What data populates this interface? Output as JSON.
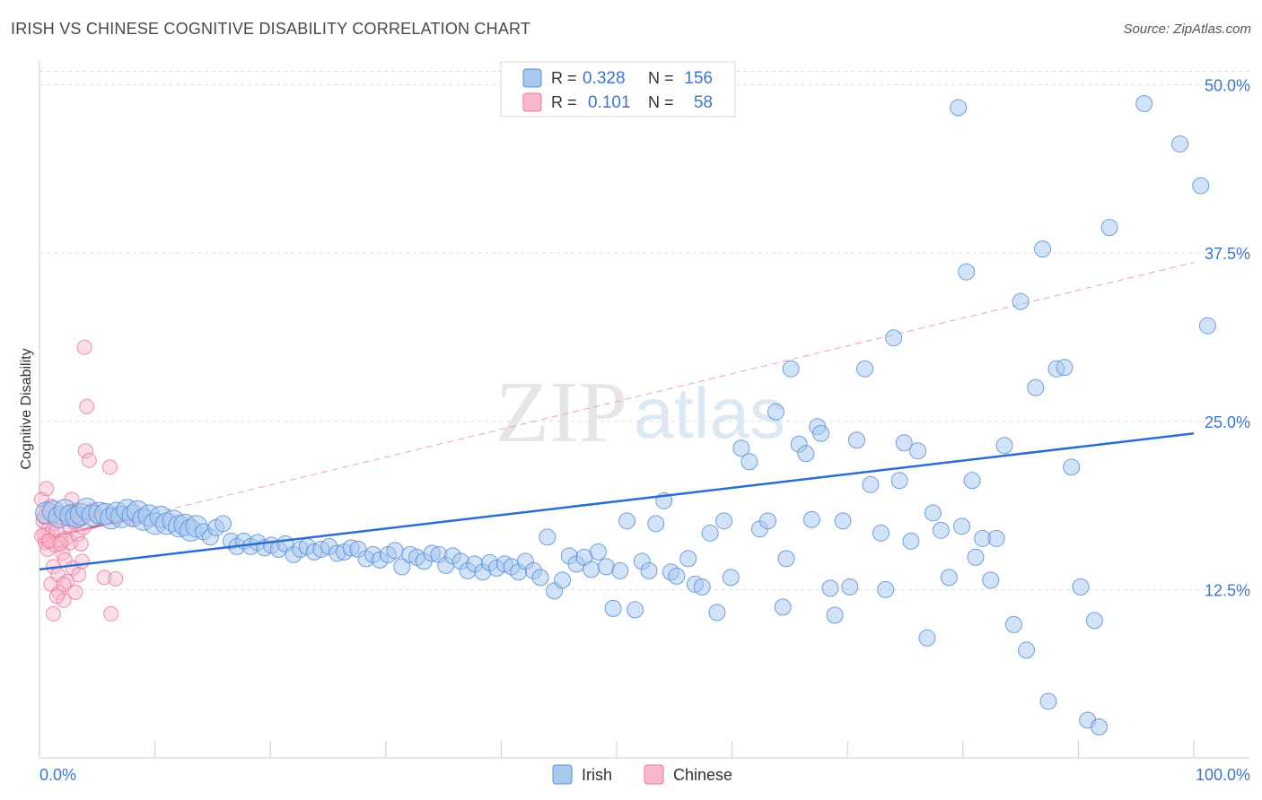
{
  "title": "IRISH VS CHINESE COGNITIVE DISABILITY CORRELATION CHART",
  "source": "Source: ZipAtlas.com",
  "watermark": {
    "zip": "ZIP",
    "atlas": "atlas"
  },
  "legend_top": [
    {
      "r_label": "R =",
      "r_value": "0.328",
      "n_label": "N =",
      "n_value": "156"
    },
    {
      "r_label": "R =",
      "r_value": "0.101",
      "n_label": "N =",
      "n_value": "58"
    }
  ],
  "colors": {
    "irish_fill": "#a8c8f0",
    "irish_stroke": "#5a8fd8",
    "irish_line": "#2a6fd0",
    "chinese_fill": "#f7b8cc",
    "chinese_stroke": "#e87898",
    "chinese_line": "#e8507a",
    "axis_text": "#3a76d0",
    "grid": "#dddddd"
  },
  "chart_data": {
    "type": "scatter",
    "title": "IRISH VS CHINESE COGNITIVE DISABILITY CORRELATION CHART",
    "xlabel": "",
    "ylabel": "Cognitive Disability",
    "xlim": [
      0,
      100
    ],
    "ylim": [
      0,
      51.5
    ],
    "x_tick_labels": [
      "0.0%",
      "100.0%"
    ],
    "y_ticks": [
      12.5,
      25.0,
      37.5,
      50.0
    ],
    "y_tick_labels": [
      "12.5%",
      "25.0%",
      "37.5%",
      "50.0%"
    ],
    "legend": [
      "Irish",
      "Chinese"
    ],
    "series": [
      {
        "name": "Irish",
        "r": 0.328,
        "n": 156,
        "trend": {
          "x0": 0,
          "y0": 14.0,
          "x1": 100,
          "y1": 24.1
        },
        "points": [
          [
            0.6,
            18.2
          ],
          [
            1.2,
            18.3
          ],
          [
            1.7,
            17.9
          ],
          [
            2.2,
            18.4
          ],
          [
            2.7,
            18.0
          ],
          [
            3.2,
            17.9
          ],
          [
            3.6,
            18.1
          ],
          [
            4.1,
            18.5
          ],
          [
            4.6,
            18.0
          ],
          [
            5.2,
            18.2
          ],
          [
            5.7,
            18.1
          ],
          [
            6.2,
            17.8
          ],
          [
            6.7,
            18.2
          ],
          [
            7.1,
            17.9
          ],
          [
            7.6,
            18.4
          ],
          [
            8.1,
            18.0
          ],
          [
            8.5,
            18.3
          ],
          [
            9.0,
            17.7
          ],
          [
            9.5,
            18.0
          ],
          [
            10.0,
            17.4
          ],
          [
            10.5,
            17.9
          ],
          [
            11.0,
            17.4
          ],
          [
            11.6,
            17.6
          ],
          [
            12.1,
            17.2
          ],
          [
            12.6,
            17.3
          ],
          [
            13.1,
            16.9
          ],
          [
            13.6,
            17.2
          ],
          [
            14.2,
            16.8
          ],
          [
            14.8,
            16.4
          ],
          [
            15.3,
            17.1
          ],
          [
            15.9,
            17.4
          ],
          [
            16.6,
            16.1
          ],
          [
            17.1,
            15.7
          ],
          [
            17.7,
            16.1
          ],
          [
            18.3,
            15.7
          ],
          [
            18.9,
            16.0
          ],
          [
            19.5,
            15.6
          ],
          [
            20.1,
            15.8
          ],
          [
            20.7,
            15.5
          ],
          [
            21.3,
            15.9
          ],
          [
            22.0,
            15.1
          ],
          [
            22.6,
            15.5
          ],
          [
            23.2,
            15.7
          ],
          [
            23.8,
            15.3
          ],
          [
            24.4,
            15.5
          ],
          [
            25.1,
            15.7
          ],
          [
            25.8,
            15.2
          ],
          [
            26.4,
            15.3
          ],
          [
            27.0,
            15.6
          ],
          [
            27.6,
            15.5
          ],
          [
            28.3,
            14.8
          ],
          [
            28.9,
            15.1
          ],
          [
            29.5,
            14.7
          ],
          [
            30.2,
            15.1
          ],
          [
            30.8,
            15.4
          ],
          [
            31.4,
            14.2
          ],
          [
            32.1,
            15.1
          ],
          [
            32.7,
            14.9
          ],
          [
            33.3,
            14.6
          ],
          [
            34.0,
            15.2
          ],
          [
            34.6,
            15.1
          ],
          [
            35.2,
            14.3
          ],
          [
            35.8,
            15.0
          ],
          [
            36.5,
            14.6
          ],
          [
            37.1,
            13.9
          ],
          [
            37.7,
            14.4
          ],
          [
            38.4,
            13.8
          ],
          [
            39.0,
            14.5
          ],
          [
            39.6,
            14.1
          ],
          [
            40.3,
            14.4
          ],
          [
            40.9,
            14.2
          ],
          [
            41.5,
            13.8
          ],
          [
            42.1,
            14.6
          ],
          [
            42.8,
            13.9
          ],
          [
            43.4,
            13.4
          ],
          [
            44.0,
            16.4
          ],
          [
            44.6,
            12.4
          ],
          [
            45.3,
            13.2
          ],
          [
            45.9,
            15.0
          ],
          [
            46.5,
            14.4
          ],
          [
            47.2,
            14.9
          ],
          [
            47.8,
            14.0
          ],
          [
            48.4,
            15.3
          ],
          [
            49.1,
            14.2
          ],
          [
            49.7,
            11.1
          ],
          [
            50.3,
            13.9
          ],
          [
            50.9,
            17.6
          ],
          [
            51.6,
            11.0
          ],
          [
            52.2,
            14.6
          ],
          [
            52.8,
            13.9
          ],
          [
            53.4,
            17.4
          ],
          [
            54.1,
            19.1
          ],
          [
            54.7,
            13.8
          ],
          [
            55.2,
            13.5
          ],
          [
            56.2,
            14.8
          ],
          [
            56.8,
            12.9
          ],
          [
            57.4,
            12.7
          ],
          [
            58.1,
            16.7
          ],
          [
            58.7,
            10.8
          ],
          [
            59.3,
            17.6
          ],
          [
            59.9,
            13.4
          ],
          [
            60.8,
            23.0
          ],
          [
            61.5,
            22.0
          ],
          [
            62.4,
            17.0
          ],
          [
            63.1,
            17.6
          ],
          [
            63.8,
            25.7
          ],
          [
            64.4,
            11.2
          ],
          [
            64.7,
            14.8
          ],
          [
            65.1,
            28.9
          ],
          [
            65.8,
            23.3
          ],
          [
            66.4,
            22.6
          ],
          [
            66.9,
            17.7
          ],
          [
            67.4,
            24.6
          ],
          [
            67.7,
            24.1
          ],
          [
            68.5,
            12.6
          ],
          [
            68.9,
            10.6
          ],
          [
            69.6,
            17.6
          ],
          [
            70.2,
            12.7
          ],
          [
            70.8,
            23.6
          ],
          [
            71.5,
            28.9
          ],
          [
            72.0,
            20.3
          ],
          [
            72.9,
            16.7
          ],
          [
            73.3,
            12.5
          ],
          [
            74.0,
            31.2
          ],
          [
            74.5,
            20.6
          ],
          [
            74.9,
            23.4
          ],
          [
            75.5,
            16.1
          ],
          [
            76.1,
            22.8
          ],
          [
            76.9,
            8.9
          ],
          [
            77.4,
            18.2
          ],
          [
            78.1,
            16.9
          ],
          [
            78.8,
            13.4
          ],
          [
            79.6,
            48.3
          ],
          [
            79.9,
            17.2
          ],
          [
            80.3,
            36.1
          ],
          [
            80.8,
            20.6
          ],
          [
            81.1,
            14.9
          ],
          [
            81.7,
            16.3
          ],
          [
            82.4,
            13.2
          ],
          [
            82.9,
            16.3
          ],
          [
            83.6,
            23.2
          ],
          [
            84.4,
            9.9
          ],
          [
            85.0,
            33.9
          ],
          [
            85.5,
            8.0
          ],
          [
            86.3,
            27.5
          ],
          [
            86.9,
            37.8
          ],
          [
            87.4,
            4.2
          ],
          [
            88.1,
            28.9
          ],
          [
            88.8,
            29.0
          ],
          [
            89.4,
            21.6
          ],
          [
            90.2,
            12.7
          ],
          [
            90.8,
            2.8
          ],
          [
            91.4,
            10.2
          ],
          [
            91.8,
            2.3
          ],
          [
            92.7,
            39.4
          ],
          [
            95.7,
            48.6
          ],
          [
            98.8,
            45.6
          ],
          [
            100.6,
            42.5
          ],
          [
            101.2,
            32.1
          ]
        ]
      },
      {
        "name": "Chinese",
        "r": 0.101,
        "n": 58,
        "trend": {
          "x0": 0,
          "y0": 16.2,
          "x1": 9.0,
          "y1": 18.0
        },
        "trend_ext": {
          "x0": 9.0,
          "y0": 18.0,
          "x1": 100,
          "y1": 36.8
        },
        "points": [
          [
            0.2,
            19.2
          ],
          [
            0.3,
            17.6
          ],
          [
            0.4,
            16.5
          ],
          [
            0.5,
            16.0
          ],
          [
            0.6,
            18.3
          ],
          [
            0.7,
            15.5
          ],
          [
            0.8,
            17.0
          ],
          [
            0.9,
            16.2
          ],
          [
            1.0,
            12.9
          ],
          [
            1.0,
            18.7
          ],
          [
            1.1,
            16.8
          ],
          [
            1.2,
            14.2
          ],
          [
            1.3,
            17.4
          ],
          [
            1.4,
            15.8
          ],
          [
            1.5,
            16.9
          ],
          [
            1.6,
            13.6
          ],
          [
            1.7,
            12.3
          ],
          [
            1.8,
            17.9
          ],
          [
            1.9,
            16.1
          ],
          [
            2.0,
            15.2
          ],
          [
            2.1,
            11.7
          ],
          [
            2.2,
            14.7
          ],
          [
            2.3,
            16.3
          ],
          [
            2.4,
            13.1
          ],
          [
            2.5,
            18.2
          ],
          [
            2.6,
            17.2
          ],
          [
            2.7,
            16.0
          ],
          [
            2.8,
            19.2
          ],
          [
            2.9,
            14.1
          ],
          [
            3.0,
            17.5
          ],
          [
            3.1,
            12.3
          ],
          [
            3.2,
            18.4
          ],
          [
            3.3,
            16.6
          ],
          [
            3.4,
            13.6
          ],
          [
            3.5,
            17.7
          ],
          [
            3.6,
            15.9
          ],
          [
            3.7,
            14.6
          ],
          [
            3.8,
            17.1
          ],
          [
            0.2,
            16.5
          ],
          [
            0.4,
            17.9
          ],
          [
            0.6,
            20.0
          ],
          [
            0.8,
            16.1
          ],
          [
            1.2,
            10.7
          ],
          [
            1.5,
            12.0
          ],
          [
            1.8,
            15.9
          ],
          [
            2.1,
            12.9
          ],
          [
            2.4,
            17.8
          ],
          [
            3.9,
            30.5
          ],
          [
            4.0,
            22.8
          ],
          [
            4.1,
            26.1
          ],
          [
            4.3,
            22.1
          ],
          [
            4.6,
            18.4
          ],
          [
            5.1,
            17.8
          ],
          [
            5.6,
            13.4
          ],
          [
            6.1,
            21.6
          ],
          [
            6.2,
            10.7
          ],
          [
            6.6,
            13.3
          ],
          [
            8.1,
            17.7
          ]
        ]
      }
    ]
  }
}
